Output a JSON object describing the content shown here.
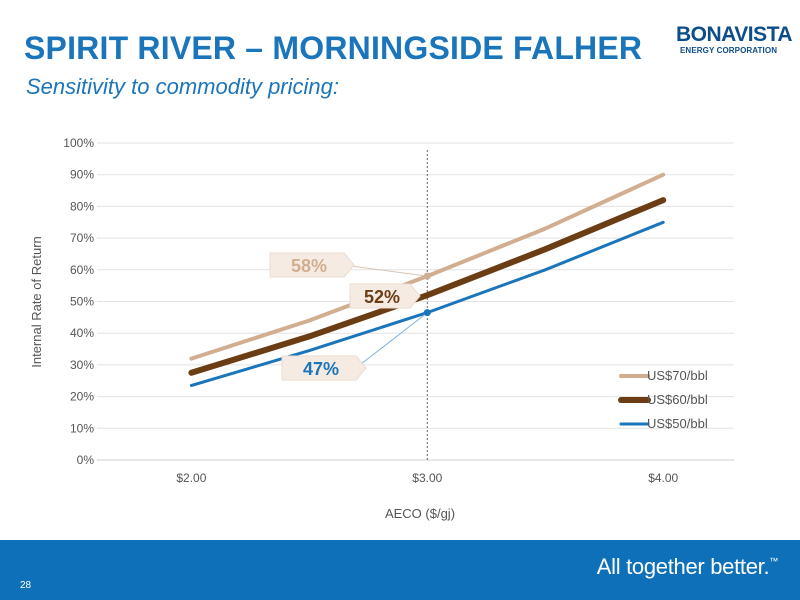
{
  "header": {
    "title": "SPIRIT RIVER – MORNINGSIDE FALHER",
    "subtitle": "Sensitivity to commodity pricing:"
  },
  "logo": {
    "line1": "BONAVISTA",
    "line2": "ENERGY CORPORATION"
  },
  "footer": {
    "page_number": "28",
    "tagline": "All together better.",
    "trademark": "™"
  },
  "colors": {
    "title": "#1a75bb",
    "footer": "#0e70b8",
    "us70": "#d2ae91",
    "us60": "#6b3d14",
    "us50": "#1a75bb"
  },
  "chart_data": {
    "type": "line",
    "xlabel": "AECO ($/gj)",
    "ylabel": "Internal Rate of Return",
    "xlim": [
      1.6,
      4.3
    ],
    "ylim": [
      0,
      100
    ],
    "x_ticks": [
      2.0,
      3.0,
      4.0
    ],
    "x_tick_labels": [
      "$2.00",
      "$3.00",
      "$4.00"
    ],
    "y_ticks": [
      0,
      10,
      20,
      30,
      40,
      50,
      60,
      70,
      80,
      90,
      100
    ],
    "y_tick_labels": [
      "0%",
      "10%",
      "20%",
      "30%",
      "40%",
      "50%",
      "60%",
      "70%",
      "80%",
      "90%",
      "100%"
    ],
    "grid": true,
    "legend_position": "bottom-right",
    "reference_line_x": 3.0,
    "series": [
      {
        "name": "US$70/bbl",
        "color": "#d2ae91",
        "width": 4,
        "x": [
          2.0,
          2.5,
          3.0,
          3.5,
          4.0
        ],
        "y": [
          32,
          44,
          58,
          73,
          90
        ]
      },
      {
        "name": "US$60/bbl",
        "color": "#6b3d14",
        "width": 6,
        "x": [
          2.0,
          2.5,
          3.0,
          3.5,
          4.0
        ],
        "y": [
          27.5,
          39,
          52,
          66.5,
          82
        ]
      },
      {
        "name": "US$50/bbl",
        "color": "#1a75bb",
        "width": 3,
        "x": [
          2.0,
          2.5,
          3.0,
          3.5,
          4.0
        ],
        "y": [
          23.5,
          34.5,
          46.5,
          60,
          75
        ]
      }
    ],
    "annotations": [
      {
        "text": "58%",
        "series": "US$70/bbl",
        "x": 3.0,
        "y": 58,
        "color": "#d2ae91",
        "placement": "upper-left"
      },
      {
        "text": "52%",
        "series": "US$60/bbl",
        "x": 3.0,
        "y": 52,
        "color": "#6b3d14",
        "placement": "left"
      },
      {
        "text": "47%",
        "series": "US$50/bbl",
        "x": 3.0,
        "y": 46.5,
        "color": "#1a75bb",
        "placement": "lower-left"
      }
    ]
  }
}
